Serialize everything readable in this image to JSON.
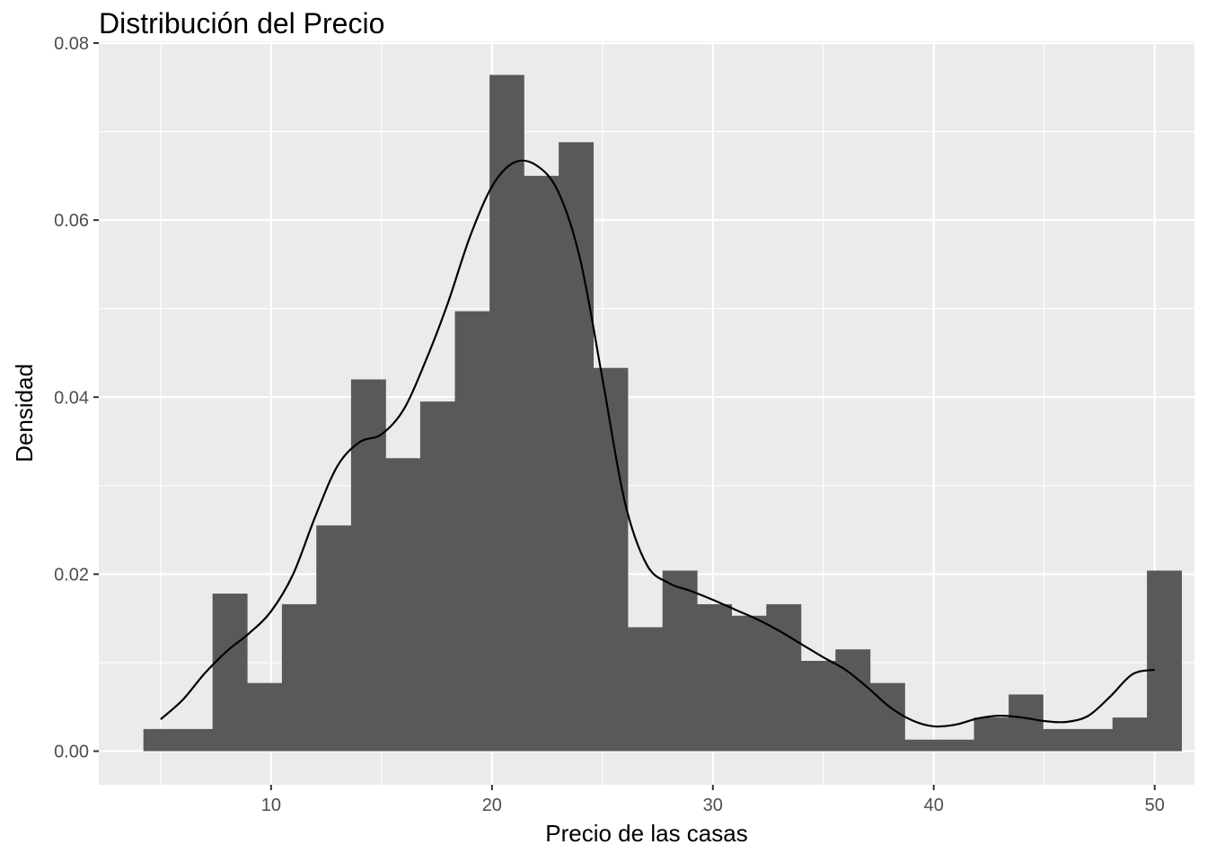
{
  "chart_data": {
    "type": "bar",
    "title": "Distribución del Precio",
    "xlabel": "Precio de las casas",
    "ylabel": "Densidad",
    "xlim": [
      2.2,
      51.8
    ],
    "ylim": [
      -0.0038,
      0.0802
    ],
    "x_ticks": [
      10,
      20,
      30,
      40,
      50
    ],
    "x_tick_labels": [
      "10",
      "20",
      "30",
      "40",
      "50"
    ],
    "y_ticks": [
      0.0,
      0.02,
      0.04,
      0.06,
      0.08
    ],
    "y_tick_labels": [
      "0.00",
      "0.02",
      "0.04",
      "0.06",
      "0.08"
    ],
    "grid": true,
    "bin_width": 1.5667,
    "bins": [
      {
        "x0": 4.22,
        "x1": 5.79,
        "density": 0.0025
      },
      {
        "x0": 5.79,
        "x1": 7.35,
        "density": 0.0025
      },
      {
        "x0": 7.35,
        "x1": 8.92,
        "density": 0.0178
      },
      {
        "x0": 8.92,
        "x1": 10.49,
        "density": 0.0077
      },
      {
        "x0": 10.49,
        "x1": 12.05,
        "density": 0.0166
      },
      {
        "x0": 12.05,
        "x1": 13.62,
        "density": 0.0255
      },
      {
        "x0": 13.62,
        "x1": 15.19,
        "density": 0.042
      },
      {
        "x0": 15.19,
        "x1": 16.75,
        "density": 0.0331
      },
      {
        "x0": 16.75,
        "x1": 18.32,
        "density": 0.0395
      },
      {
        "x0": 18.32,
        "x1": 19.89,
        "density": 0.0497
      },
      {
        "x0": 19.89,
        "x1": 21.45,
        "density": 0.0764
      },
      {
        "x0": 21.45,
        "x1": 23.02,
        "density": 0.065
      },
      {
        "x0": 23.02,
        "x1": 24.59,
        "density": 0.0688
      },
      {
        "x0": 24.59,
        "x1": 26.15,
        "density": 0.0433
      },
      {
        "x0": 26.15,
        "x1": 27.72,
        "density": 0.014
      },
      {
        "x0": 27.72,
        "x1": 29.29,
        "density": 0.0204
      },
      {
        "x0": 29.29,
        "x1": 30.85,
        "density": 0.0166
      },
      {
        "x0": 30.85,
        "x1": 32.42,
        "density": 0.0153
      },
      {
        "x0": 32.42,
        "x1": 33.99,
        "density": 0.0166
      },
      {
        "x0": 33.99,
        "x1": 35.55,
        "density": 0.0102
      },
      {
        "x0": 35.55,
        "x1": 37.12,
        "density": 0.0115
      },
      {
        "x0": 37.12,
        "x1": 38.69,
        "density": 0.0077
      },
      {
        "x0": 38.69,
        "x1": 40.25,
        "density": 0.0013
      },
      {
        "x0": 40.25,
        "x1": 41.82,
        "density": 0.0013
      },
      {
        "x0": 41.82,
        "x1": 43.39,
        "density": 0.0038
      },
      {
        "x0": 43.39,
        "x1": 44.95,
        "density": 0.0064
      },
      {
        "x0": 44.95,
        "x1": 46.52,
        "density": 0.0025
      },
      {
        "x0": 46.52,
        "x1": 48.09,
        "density": 0.0025
      },
      {
        "x0": 48.09,
        "x1": 49.65,
        "density": 0.0038
      },
      {
        "x0": 49.65,
        "x1": 51.22,
        "density": 0.0204
      }
    ],
    "density_curve": {
      "x": [
        5.0,
        6.0,
        7.0,
        8.0,
        9.0,
        10.0,
        11.0,
        12.0,
        13.0,
        14.0,
        15.0,
        16.0,
        17.0,
        18.0,
        19.0,
        20.0,
        21.0,
        22.0,
        23.0,
        24.0,
        25.0,
        26.0,
        27.0,
        28.0,
        29.0,
        30.0,
        31.0,
        32.0,
        33.0,
        34.0,
        35.0,
        36.0,
        37.0,
        38.0,
        39.0,
        40.0,
        41.0,
        42.0,
        43.0,
        44.0,
        45.0,
        46.0,
        47.0,
        48.0,
        49.0,
        50.0
      ],
      "y": [
        0.0036,
        0.0058,
        0.0088,
        0.0113,
        0.0133,
        0.0158,
        0.02,
        0.0265,
        0.0322,
        0.0349,
        0.0358,
        0.0386,
        0.0441,
        0.0506,
        0.0581,
        0.0638,
        0.0665,
        0.0662,
        0.0632,
        0.0555,
        0.0421,
        0.0283,
        0.0211,
        0.019,
        0.0181,
        0.0171,
        0.016,
        0.0149,
        0.0136,
        0.0121,
        0.0106,
        0.0092,
        0.0072,
        0.005,
        0.0035,
        0.0028,
        0.003,
        0.0037,
        0.004,
        0.0038,
        0.0034,
        0.0033,
        0.004,
        0.0062,
        0.0087,
        0.0092
      ]
    },
    "colors": {
      "panel_background": "#ebebeb",
      "grid": "#ffffff",
      "bars": "#595959",
      "curve": "#000000"
    }
  }
}
